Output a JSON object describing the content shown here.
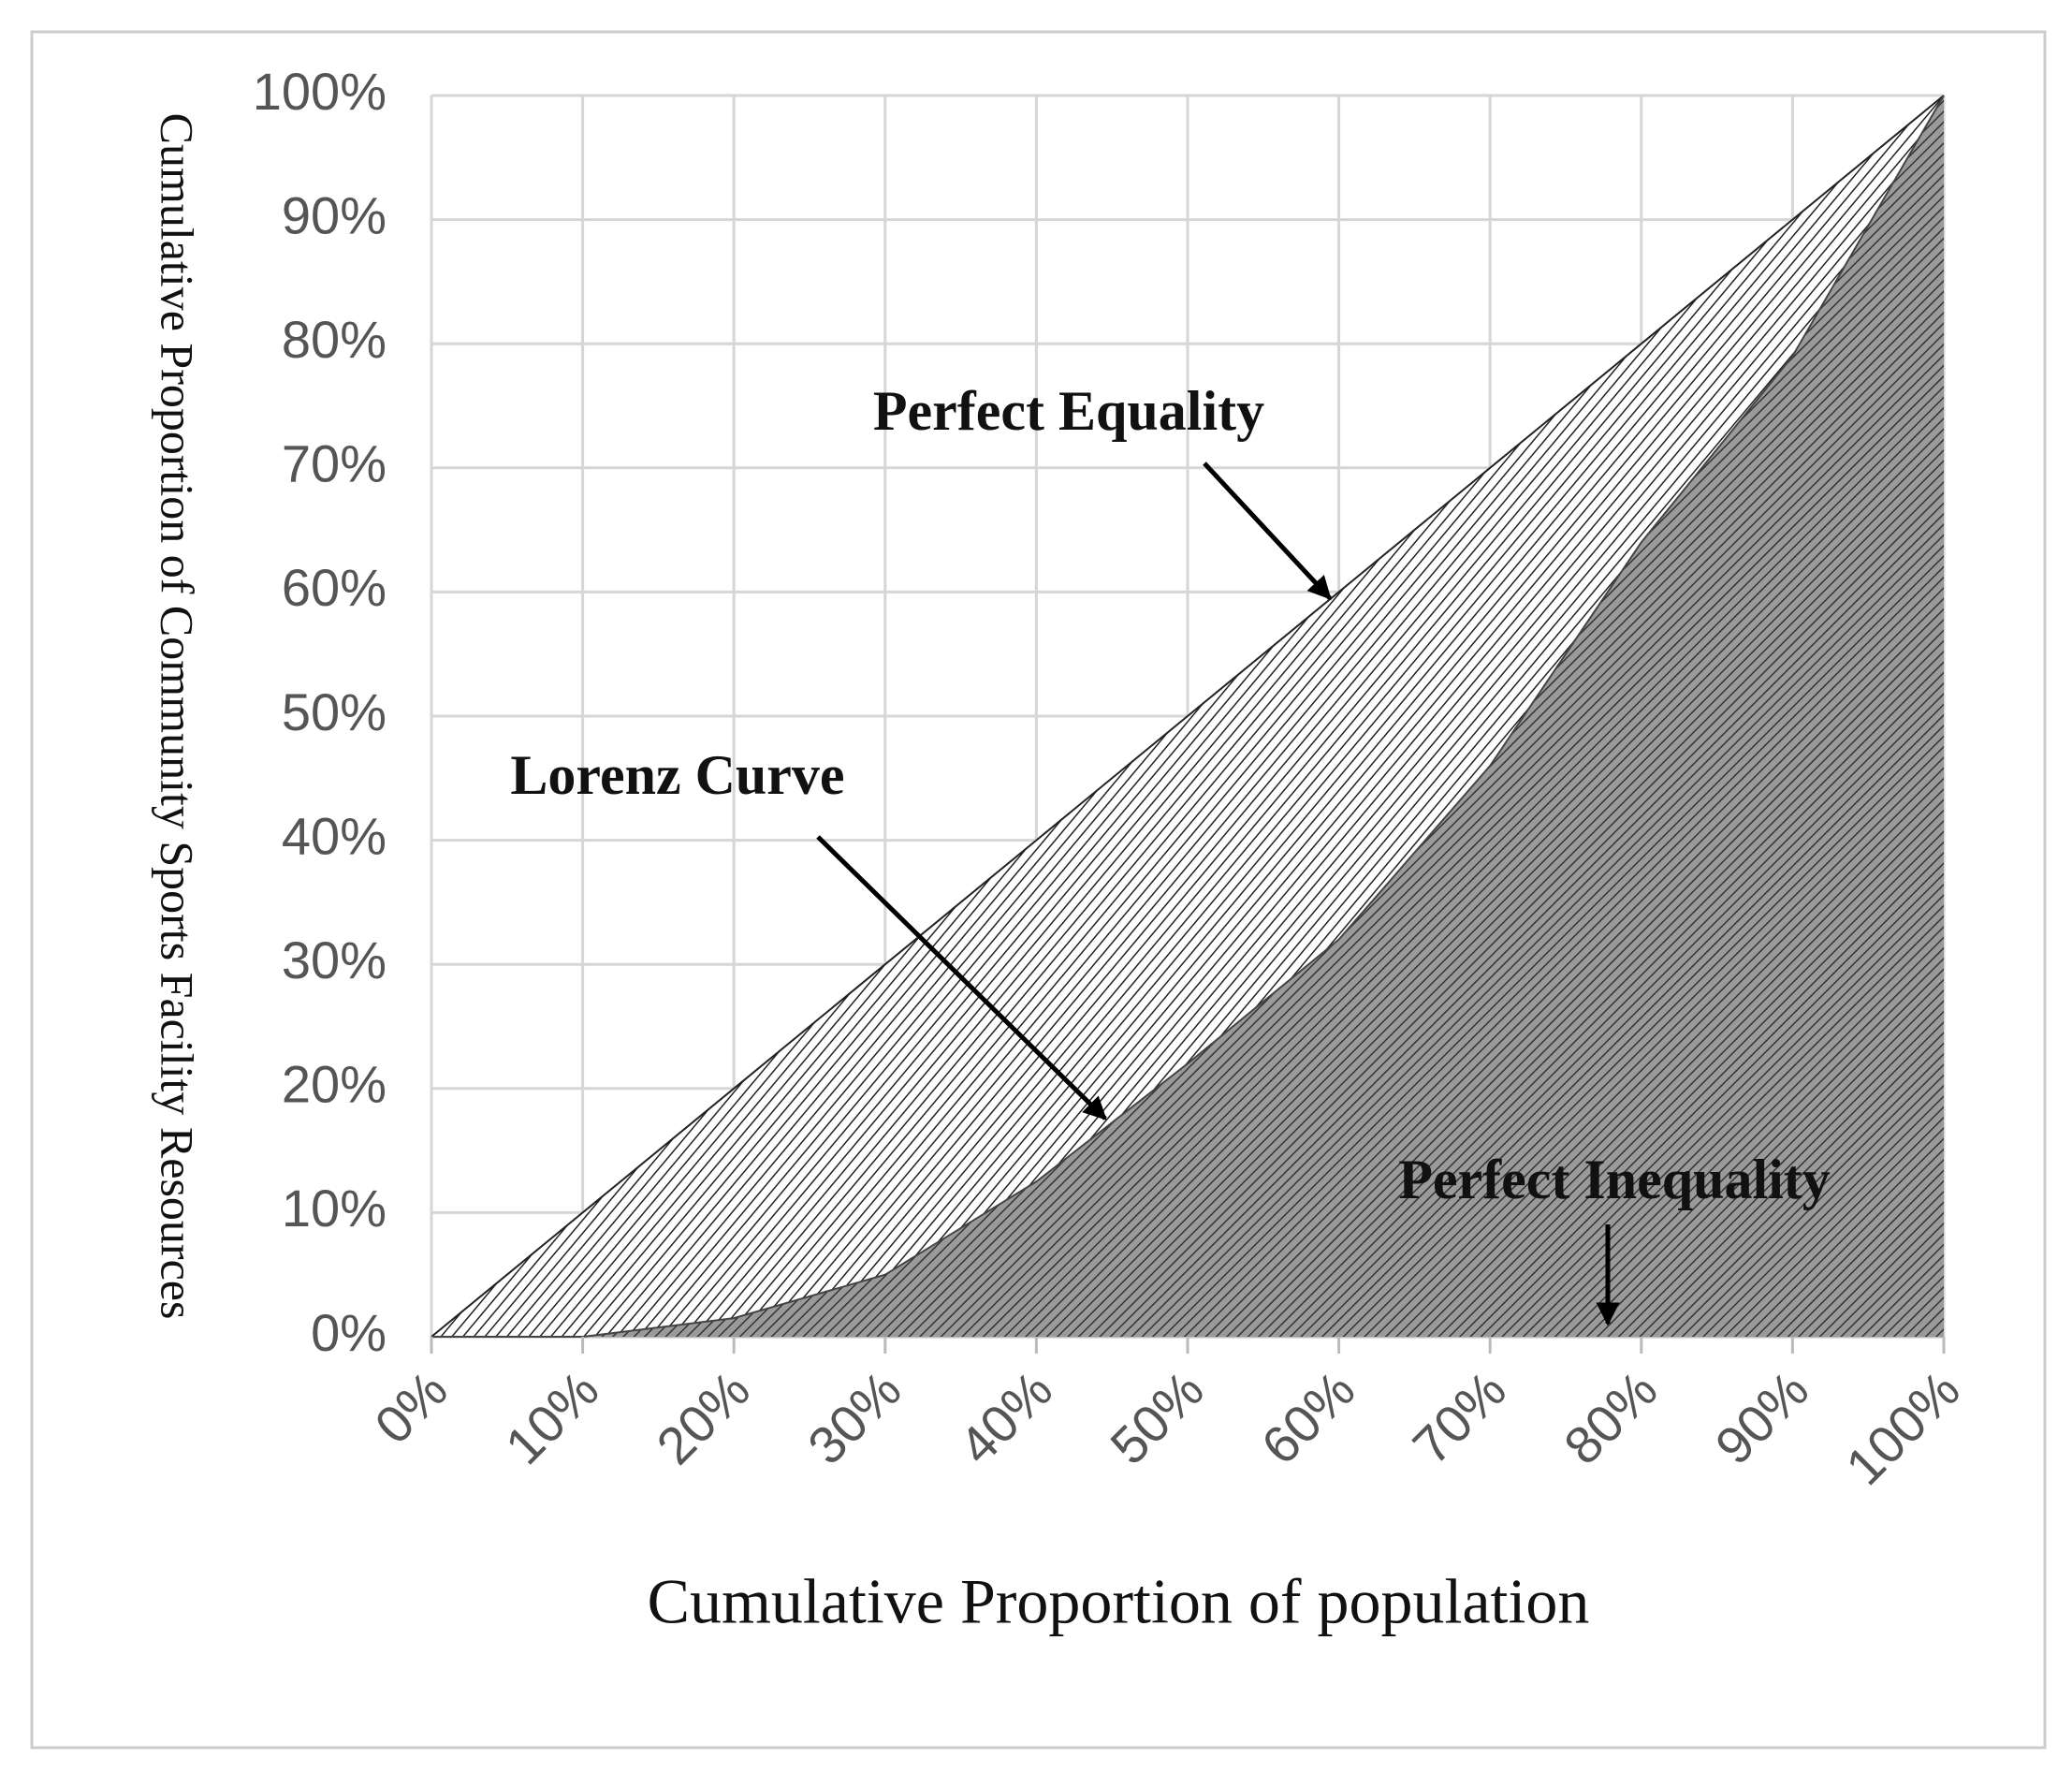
{
  "chart_data": {
    "type": "line",
    "xlabel": "Cumulative Proportion of population",
    "ylabel": "Cumulative Proportion of Community Sports Facility Resources",
    "x": [
      0,
      10,
      20,
      30,
      40,
      50,
      60,
      70,
      80,
      90,
      100
    ],
    "series": [
      {
        "name": "Perfect Equality",
        "color": "#222222",
        "values": [
          0,
          10,
          20,
          30,
          40,
          50,
          60,
          70,
          80,
          90,
          100
        ]
      },
      {
        "name": "Lorenz Curve",
        "color": "#444444",
        "values": [
          0,
          0,
          1.5,
          5,
          12.5,
          22,
          32,
          46,
          64,
          79,
          100
        ]
      }
    ],
    "annotations": [
      "Perfect Inequality"
    ],
    "xlim": [
      0,
      100
    ],
    "ylim": [
      0,
      100
    ],
    "xticks": [
      {
        "value": 0,
        "label": "0%"
      },
      {
        "value": 10,
        "label": "10%"
      },
      {
        "value": 20,
        "label": "20%"
      },
      {
        "value": 30,
        "label": "30%"
      },
      {
        "value": 40,
        "label": "40%"
      },
      {
        "value": 50,
        "label": "50%"
      },
      {
        "value": 60,
        "label": "60%"
      },
      {
        "value": 70,
        "label": "70%"
      },
      {
        "value": 80,
        "label": "80%"
      },
      {
        "value": 90,
        "label": "90%"
      },
      {
        "value": 100,
        "label": "100%"
      }
    ],
    "yticks": [
      {
        "value": 0,
        "label": "0%"
      },
      {
        "value": 10,
        "label": "10%"
      },
      {
        "value": 20,
        "label": "20%"
      },
      {
        "value": 30,
        "label": "30%"
      },
      {
        "value": 40,
        "label": "40%"
      },
      {
        "value": 50,
        "label": "50%"
      },
      {
        "value": 60,
        "label": "60%"
      },
      {
        "value": 70,
        "label": "70%"
      },
      {
        "value": 80,
        "label": "80%"
      },
      {
        "value": 90,
        "label": "90%"
      },
      {
        "value": 100,
        "label": "100%"
      }
    ],
    "grid": true
  }
}
